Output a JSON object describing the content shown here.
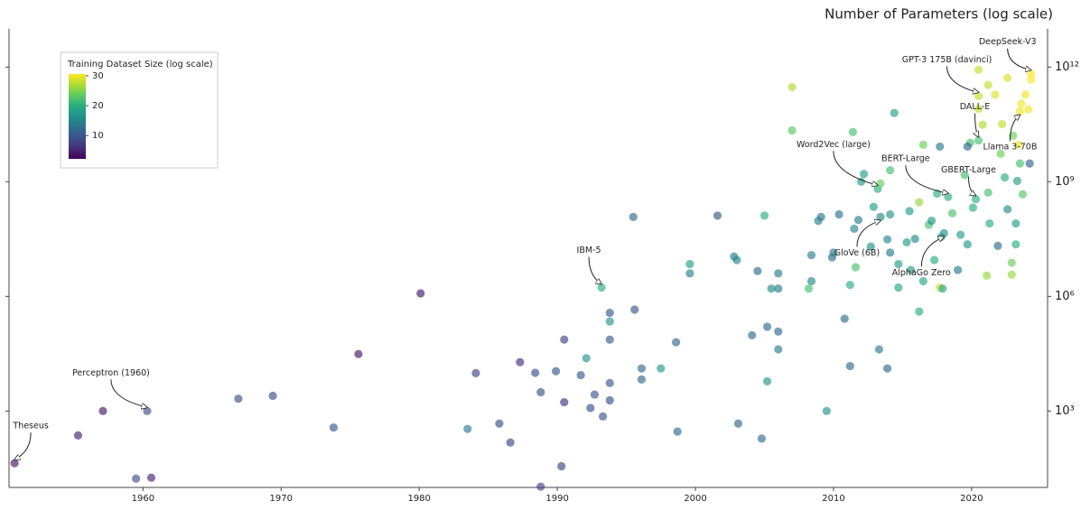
{
  "chart_data": {
    "type": "scatter",
    "title": "Number of Parameters (log scale)",
    "x": [
      1950.7,
      1955.3,
      1957.1,
      1960.3,
      1959.5,
      1960.6,
      1966.9,
      1969.4,
      1973.8,
      1975.6,
      1980.1,
      1983.5,
      1984.1,
      1985.8,
      1986.6,
      1987.3,
      1988.4,
      1988.8,
      1988.8,
      1989.9,
      1990.5,
      1990.5,
      1990.3,
      1992.1,
      1991.7,
      1992.7,
      1992.4,
      1993.3,
      1993.2,
      1993.8,
      1993.8,
      1993.8,
      1993.8,
      1993.8,
      1995.5,
      1995.6,
      1996.1,
      1996.1,
      1997.5,
      1998.6,
      1998.7,
      1999.6,
      1999.6,
      2001.6,
      2002.8,
      2003.0,
      2003.1,
      2004.1,
      2004.5,
      2004.8,
      2005.0,
      2005.2,
      2005.2,
      2005.5,
      2006.0,
      2006.0,
      2006.0,
      2006.0,
      2007.0,
      2007.0,
      2008.2,
      2008.4,
      2008.4,
      2008.9,
      2009.1,
      2009.5,
      2009.9,
      2010.0,
      2010.4,
      2010.8,
      2011.2,
      2011.2,
      2011.4,
      2011.5,
      2011.6,
      2011.8,
      2012.0,
      2012.2,
      2012.7,
      2012.9,
      2013.2,
      2013.3,
      2013.4,
      2013.9,
      2014.1,
      2014.1,
      2014.1,
      2013.9,
      2014.4,
      2014.7,
      2014.7,
      2015.3,
      2015.5,
      2015.6,
      2015.9,
      2016.2,
      2016.2,
      2016.5,
      2016.5,
      2016.9,
      2017.1,
      2017.3,
      2017.5,
      2017.8,
      2017.7,
      2017.7,
      2017.9,
      2018.6,
      2019.0,
      2019.2,
      2019.5,
      2019.7,
      2019.9,
      2020.1,
      2020.5,
      2020.5,
      2020.8,
      2021.2,
      2021.2,
      2021.3,
      2021.7,
      2022.1,
      2022.2,
      2022.4,
      2022.6,
      2022.6,
      2022.9,
      2023.0,
      2023.2,
      2023.5,
      2023.6,
      2023.9,
      2024.1,
      2024.3,
      2023.3,
      2023.7,
      2023.4,
      2021.1,
      2022.9,
      2023.2,
      2021.9,
      2019.7,
      2024.2,
      2018.3,
      2018.0,
      2020.3,
      2013.4,
      2020.5,
      2020.5,
      2023.5,
      2024.3
    ],
    "values": [
      43,
      230,
      1000,
      1000,
      17,
      18,
      2100,
      2500,
      370,
      31000,
      1200000,
      340,
      9800,
      470,
      150,
      19000,
      10000,
      3100,
      10.5,
      11000,
      74000,
      1700,
      36,
      24000,
      8700,
      2700,
      1200,
      720,
      1700000,
      370000,
      220000,
      74000,
      5400,
      1900,
      120000000,
      450000,
      13000,
      6700,
      13000,
      63000,
      290,
      7000000,
      4000000,
      130000000,
      11000000,
      8900000,
      470,
      96000,
      4600000,
      190,
      130000000,
      160000,
      6000,
      1600000,
      4000000,
      1600000,
      120000,
      41000,
      300000000000.0,
      22000000000.0,
      1600000,
      2500000,
      12000000,
      95000000,
      120000000,
      1000,
      10500000,
      14000000,
      140000000,
      260000,
      2000000,
      15000,
      20000000000.0,
      59000000,
      5800000,
      100000000,
      1000000000.0,
      1600000000.0,
      20000000,
      220000000,
      650000000,
      41000,
      900000000,
      31000000,
      2000000000.0,
      140000000,
      14000000,
      13000,
      63000000000.0,
      1700000,
      7000000,
      26000000,
      170000000,
      4900000,
      32000000,
      290000000,
      400000,
      9300000000.0,
      2500000,
      74000000,
      95000000,
      8900000,
      490000000,
      36000000,
      1700000,
      8300000000.0,
      1600000,
      150000000,
      4900000,
      41000000,
      1500000000.0,
      23000000,
      10500000000.0,
      210000000,
      81000000000.0,
      850000000000.0,
      31000000000.0,
      340000000000.0,
      520000000,
      81000000,
      190000000000.0,
      5400000000.0,
      32000000000.0,
      1300000000.0,
      520000000000.0,
      190000000,
      3700000,
      16000000000.0,
      81000000,
      3000000000.0,
      110000000000.0,
      190000000000.0,
      78000000000.0,
      470000000000.0,
      1050000000.0,
      470000000,
      9300000000.0,
      3500000,
      7600000,
      23000000,
      21000000,
      8300000000.0,
      3000000000.0,
      400000000,
      45000000,
      350000000,
      120000000,
      175000000000.0,
      12000000000.0,
      70000000000.0,
      670000000000.0
    ],
    "color_values": [
      4,
      5,
      4,
      9,
      9,
      5,
      9,
      9,
      10,
      4,
      4,
      14,
      8,
      9,
      8,
      6,
      9,
      10,
      8,
      10,
      8,
      6,
      8,
      17,
      10,
      10,
      9,
      10,
      20,
      10,
      17,
      10,
      10,
      9,
      12,
      10,
      12,
      12,
      17,
      12,
      12,
      18,
      14,
      10,
      14,
      15,
      12,
      12,
      12,
      12,
      20,
      12,
      17,
      16,
      14,
      14,
      12,
      14,
      27,
      23,
      22,
      16,
      14,
      14,
      14,
      17,
      12,
      14,
      13,
      13,
      20,
      12,
      22,
      15,
      22,
      14,
      18,
      18,
      16,
      18,
      20,
      14,
      24,
      15,
      22,
      17,
      14,
      12,
      18,
      19,
      18,
      18,
      18,
      18,
      16,
      26,
      20,
      24,
      19,
      22,
      17,
      20,
      20,
      19,
      28,
      14,
      19,
      22,
      14,
      18,
      22,
      17,
      22,
      20,
      28,
      28,
      27,
      28,
      22,
      20,
      29,
      24,
      28,
      20,
      29,
      16,
      26,
      24,
      18,
      22,
      30,
      30,
      30,
      31,
      18,
      23,
      30,
      26,
      24,
      20,
      12,
      12,
      11,
      20,
      16,
      20,
      16,
      28,
      22,
      30,
      31
    ],
    "xlim": [
      1950.3,
      2025.5
    ],
    "xticks": [
      1960,
      1970,
      1980,
      1990,
      2000,
      2010,
      2020
    ],
    "ylim": [
      10,
      10000000000000.0
    ],
    "yticks": [
      {
        "value": 1000,
        "label": "10³"
      },
      {
        "value": 1000000,
        "label": "10⁶"
      },
      {
        "value": 1000000000,
        "label": "10⁹"
      },
      {
        "value": 1000000000000,
        "label": "10¹²"
      }
    ],
    "yscale": "log",
    "colormap": "viridis",
    "colorbar_title": "Training Dataset Size (log scale)",
    "color_range": [
      2.2,
      30.6
    ],
    "color_ticks": [
      10,
      20,
      30
    ],
    "annotations": [
      {
        "text": "Theseus",
        "x": 1950.7,
        "y": 43
      },
      {
        "text": "Perceptron (1960)",
        "x": 1960.3,
        "y": 1000
      },
      {
        "text": "IBM-5",
        "x": 1993.2,
        "y": 1700000
      },
      {
        "text": "Word2Vec (large)",
        "x": 2013.2,
        "y": 650000000
      },
      {
        "text": "GloVe (6B)",
        "x": 2013.4,
        "y": 120000000
      },
      {
        "text": "BERT-Large",
        "x": 2018.3,
        "y": 400000000
      },
      {
        "text": "AlphaGo Zero",
        "x": 2018.0,
        "y": 45000000
      },
      {
        "text": "GBERT-Large",
        "x": 2020.3,
        "y": 350000000
      },
      {
        "text": "GPT-3 175B (davinci)",
        "x": 2020.5,
        "y": 175000000000.0
      },
      {
        "text": "DALL-E",
        "x": 2020.5,
        "y": 12000000000.0
      },
      {
        "text": "Llama 3-70B",
        "x": 2023.5,
        "y": 70000000000.0
      },
      {
        "text": "DeepSeek-V3",
        "x": 2024.3,
        "y": 670000000000.0
      }
    ]
  }
}
